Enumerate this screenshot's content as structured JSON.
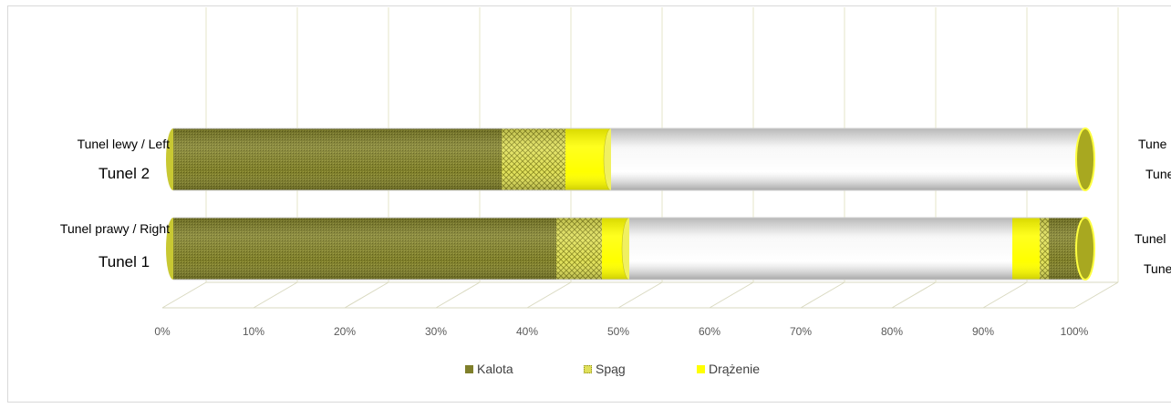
{
  "chart_data": {
    "type": "bar",
    "orientation": "horizontal",
    "stacked": true,
    "style": "3d-cylinder",
    "categories": [
      {
        "label_en": "Tunel prawy / Right",
        "label_num": "Tunel 1"
      },
      {
        "label_en": "Tunel lewy /  Left",
        "label_num": "Tunel 2"
      }
    ],
    "series": [
      {
        "name": "Kalota",
        "color": "#7f7f2a"
      },
      {
        "name": "Spąg",
        "color": "#c8c832"
      },
      {
        "name": "Drążenie",
        "color": "#ffff00"
      }
    ],
    "segments": {
      "Tunel 1": [
        {
          "series": "Kalota",
          "from": 0,
          "to": 42
        },
        {
          "series": "Spąg",
          "from": 42,
          "to": 47
        },
        {
          "series": "Drążenie",
          "from": 47,
          "to": 50
        },
        {
          "series": "",
          "from": 50,
          "to": 92,
          "empty": true
        },
        {
          "series": "Drążenie",
          "from": 92,
          "to": 95
        },
        {
          "series": "Spąg",
          "from": 95,
          "to": 96
        },
        {
          "series": "Kalota",
          "from": 96,
          "to": 100
        }
      ],
      "Tunel 2": [
        {
          "series": "Kalota",
          "from": 0,
          "to": 36
        },
        {
          "series": "Spąg",
          "from": 36,
          "to": 43
        },
        {
          "series": "Drążenie",
          "from": 43,
          "to": 48
        },
        {
          "series": "",
          "from": 48,
          "to": 100,
          "empty": true
        }
      ]
    },
    "x_ticks": [
      "0%",
      "10%",
      "20%",
      "30%",
      "40%",
      "50%",
      "60%",
      "70%",
      "80%",
      "90%",
      "100%"
    ],
    "xlim": [
      0,
      100
    ],
    "grid": true,
    "legend": "bottom",
    "right_labels_visible": {
      "Tunel 2": [
        "Tune",
        "Tune"
      ],
      "Tunel 1": [
        "Tunel",
        "Tune"
      ]
    }
  }
}
